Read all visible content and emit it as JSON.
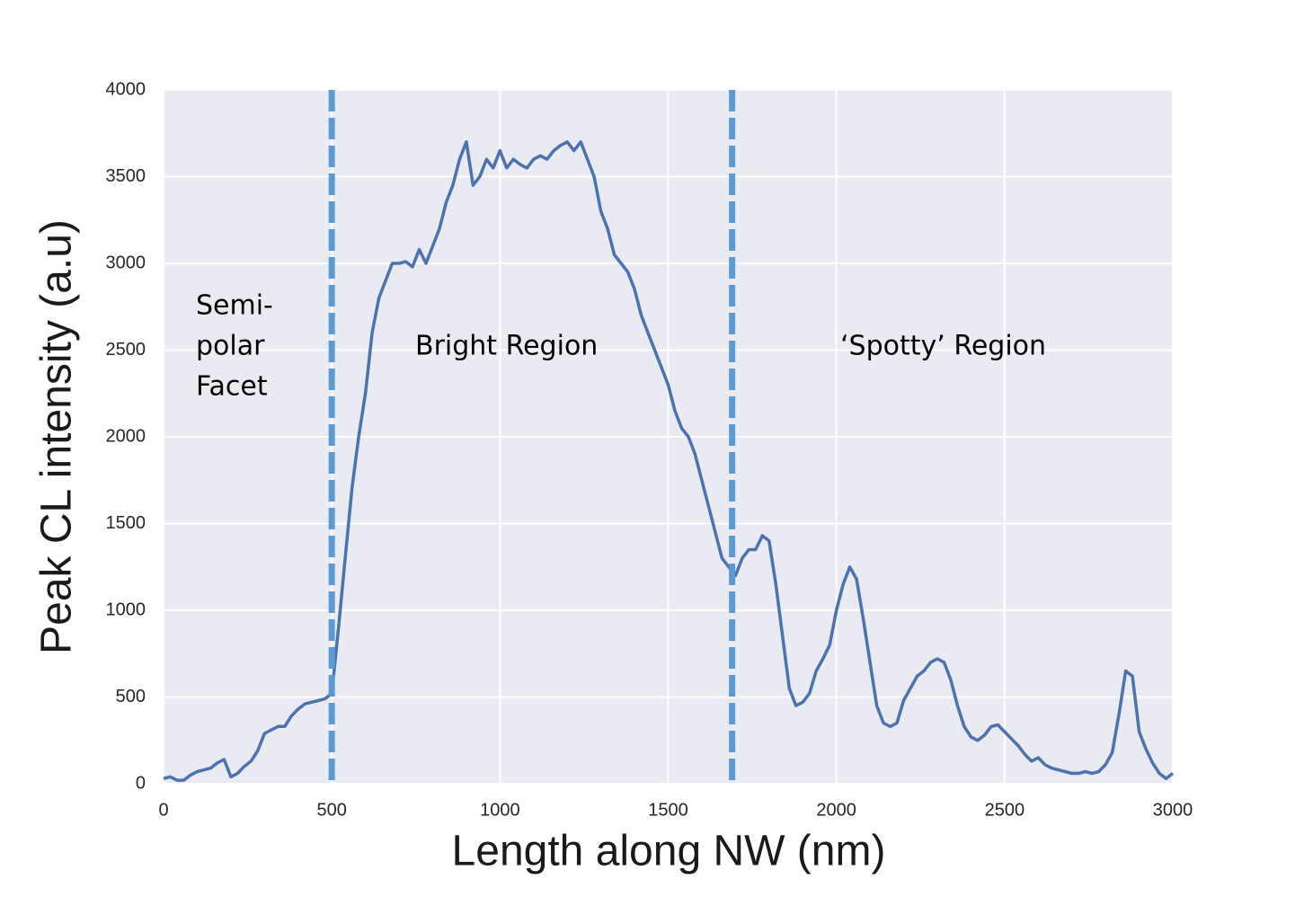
{
  "chart_data": {
    "type": "line",
    "xlabel": "Length along NW (nm)",
    "ylabel": "Peak CL intensity (a.u)",
    "x": [
      0,
      20,
      40,
      60,
      80,
      100,
      120,
      140,
      160,
      180,
      200,
      220,
      240,
      260,
      280,
      300,
      320,
      340,
      360,
      380,
      400,
      420,
      440,
      460,
      480,
      500,
      520,
      540,
      560,
      580,
      600,
      620,
      640,
      660,
      680,
      700,
      720,
      740,
      760,
      780,
      800,
      820,
      840,
      860,
      880,
      900,
      920,
      940,
      960,
      980,
      1000,
      1020,
      1040,
      1060,
      1080,
      1100,
      1120,
      1140,
      1160,
      1180,
      1200,
      1220,
      1240,
      1260,
      1280,
      1300,
      1320,
      1340,
      1360,
      1380,
      1400,
      1420,
      1440,
      1460,
      1480,
      1500,
      1520,
      1540,
      1560,
      1580,
      1600,
      1620,
      1640,
      1660,
      1680,
      1700,
      1720,
      1740,
      1760,
      1780,
      1800,
      1820,
      1840,
      1860,
      1880,
      1900,
      1920,
      1940,
      1960,
      1980,
      2000,
      2020,
      2040,
      2060,
      2080,
      2100,
      2120,
      2140,
      2160,
      2180,
      2200,
      2220,
      2240,
      2260,
      2280,
      2300,
      2320,
      2340,
      2360,
      2380,
      2400,
      2420,
      2440,
      2460,
      2480,
      2500,
      2520,
      2540,
      2560,
      2580,
      2600,
      2620,
      2640,
      2660,
      2680,
      2700,
      2720,
      2740,
      2760,
      2780,
      2800,
      2820,
      2840,
      2860,
      2880,
      2900,
      2920,
      2940,
      2960,
      2980,
      3000
    ],
    "series": [
      {
        "color": "#4c72b0",
        "values": [
          30,
          40,
          20,
          20,
          50,
          70,
          80,
          90,
          120,
          140,
          40,
          60,
          100,
          130,
          190,
          290,
          310,
          330,
          330,
          390,
          430,
          460,
          470,
          480,
          490,
          520,
          900,
          1300,
          1700,
          2000,
          2250,
          2600,
          2800,
          2900,
          3000,
          3000,
          3010,
          2980,
          3080,
          3000,
          3100,
          3200,
          3350,
          3450,
          3600,
          3700,
          3450,
          3500,
          3600,
          3550,
          3650,
          3550,
          3600,
          3570,
          3550,
          3600,
          3620,
          3600,
          3650,
          3680,
          3700,
          3650,
          3700,
          3600,
          3500,
          3300,
          3200,
          3050,
          3000,
          2950,
          2850,
          2700,
          2600,
          2500,
          2400,
          2300,
          2150,
          2050,
          2000,
          1900,
          1750,
          1600,
          1450,
          1300,
          1250,
          1200,
          1300,
          1350,
          1350,
          1430,
          1400,
          1150,
          850,
          550,
          450,
          470,
          520,
          650,
          720,
          800,
          1000,
          1150,
          1250,
          1180,
          950,
          700,
          450,
          350,
          330,
          350,
          480,
          550,
          620,
          650,
          700,
          720,
          700,
          600,
          450,
          330,
          270,
          250,
          280,
          330,
          340,
          300,
          260,
          220,
          170,
          130,
          150,
          110,
          90,
          80,
          70,
          60,
          60,
          70,
          60,
          70,
          110,
          180,
          400,
          650,
          620,
          300,
          200,
          120,
          60,
          30,
          60
        ]
      }
    ],
    "vlines": [
      500,
      1690
    ],
    "vline_color": "#5b9bd5",
    "annotations": [
      [
        "Semi-",
        "polar",
        "Facet"
      ],
      [
        "Bright Region"
      ],
      [
        "‘Spotty’ Region"
      ]
    ],
    "xlim": [
      0,
      3000
    ],
    "xticks": [
      0,
      500,
      1000,
      1500,
      2000,
      2500,
      3000
    ],
    "ylim": [
      0,
      4000
    ],
    "yticks": [
      0,
      500,
      1000,
      1500,
      2000,
      2500,
      3000,
      3500,
      4000
    ],
    "grid": true
  }
}
